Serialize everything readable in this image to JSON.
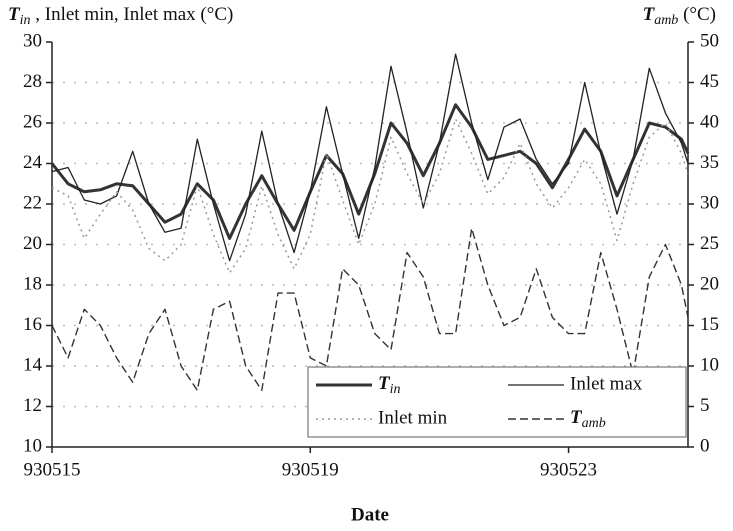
{
  "chart_data": {
    "type": "line",
    "y_label": "Tin , Inlet min, Inlet max (°C)",
    "y2_label": "Tamb (°C)",
    "x_label": "Date",
    "x": [
      0,
      0.25,
      0.5,
      0.75,
      1,
      1.25,
      1.5,
      1.75,
      2,
      2.25,
      2.5,
      2.75,
      3,
      3.25,
      3.5,
      3.75,
      4,
      4.25,
      4.5,
      4.75,
      5,
      5.25,
      5.5,
      5.75,
      6,
      6.25,
      6.5,
      6.75,
      7,
      7.25,
      7.5,
      7.75,
      8,
      8.25,
      8.5,
      8.75,
      9,
      9.25,
      9.5,
      9.75,
      9.85
    ],
    "xlim": [
      0,
      9.85
    ],
    "xticks": [
      {
        "value": 0,
        "label": "930515"
      },
      {
        "value": 4,
        "label": "930519"
      },
      {
        "value": 8,
        "label": "930523"
      }
    ],
    "ylim": [
      10,
      30
    ],
    "yticks": [
      10,
      12,
      14,
      16,
      18,
      20,
      22,
      24,
      26,
      28,
      30
    ],
    "y2lim": [
      0,
      50
    ],
    "y2ticks": [
      0,
      5,
      10,
      15,
      20,
      25,
      30,
      35,
      40,
      45,
      50
    ],
    "grid": true,
    "legend": "lower right",
    "series": [
      {
        "name": "Tin",
        "color": "#333333",
        "style": "solid",
        "width": 3,
        "values": [
          24.0,
          23.0,
          22.6,
          22.7,
          23.0,
          22.9,
          22.0,
          21.1,
          21.5,
          23.0,
          22.2,
          20.3,
          22.0,
          23.4,
          22.0,
          20.7,
          22.6,
          24.4,
          23.5,
          21.5,
          23.5,
          26.0,
          25.0,
          23.4,
          25.0,
          26.9,
          25.8,
          24.2,
          24.4,
          24.6,
          24.0,
          22.8,
          24.2,
          25.7,
          24.6,
          22.4,
          24.2,
          26.0,
          25.8,
          25.2,
          24.5
        ]
      },
      {
        "name": "Inlet max",
        "color": "#222222",
        "style": "solid",
        "width": 1.3,
        "values": [
          23.6,
          23.8,
          22.2,
          22.0,
          22.4,
          24.6,
          22.0,
          20.6,
          20.8,
          25.2,
          22.0,
          19.2,
          21.5,
          25.6,
          22.0,
          19.6,
          22.6,
          26.8,
          23.5,
          20.3,
          23.8,
          28.8,
          25.5,
          21.8,
          25.0,
          29.4,
          26.0,
          23.2,
          25.8,
          26.2,
          24.2,
          23.0,
          24.0,
          28.0,
          24.5,
          21.5,
          24.2,
          28.7,
          26.5,
          25.0,
          24.0
        ]
      },
      {
        "name": "Inlet min",
        "color": "#999999",
        "style": "dotted",
        "width": 1.5,
        "values": [
          22.8,
          22.4,
          20.3,
          21.5,
          22.6,
          21.7,
          19.8,
          19.2,
          20.0,
          22.9,
          20.5,
          18.6,
          19.8,
          22.9,
          20.5,
          18.8,
          20.5,
          24.5,
          22.2,
          20.0,
          22.0,
          25.3,
          23.5,
          22.0,
          23.5,
          26.2,
          24.5,
          22.5,
          23.3,
          25.0,
          23.0,
          21.8,
          22.8,
          24.2,
          23.0,
          20.2,
          23.0,
          25.3,
          26.0,
          24.5,
          23.5
        ]
      },
      {
        "name": "Tamb",
        "color": "#333333",
        "style": "dashed",
        "width": 1.4,
        "axis": "y2",
        "values": [
          15,
          11,
          17,
          15,
          11,
          8,
          14,
          17,
          10,
          7,
          17,
          18,
          10,
          7,
          19,
          19,
          11,
          10,
          22,
          20,
          14,
          12,
          24,
          21,
          14,
          14,
          27,
          20,
          15,
          16,
          22,
          16,
          14,
          14,
          24,
          17,
          9,
          21,
          25,
          20,
          16
        ]
      }
    ]
  }
}
